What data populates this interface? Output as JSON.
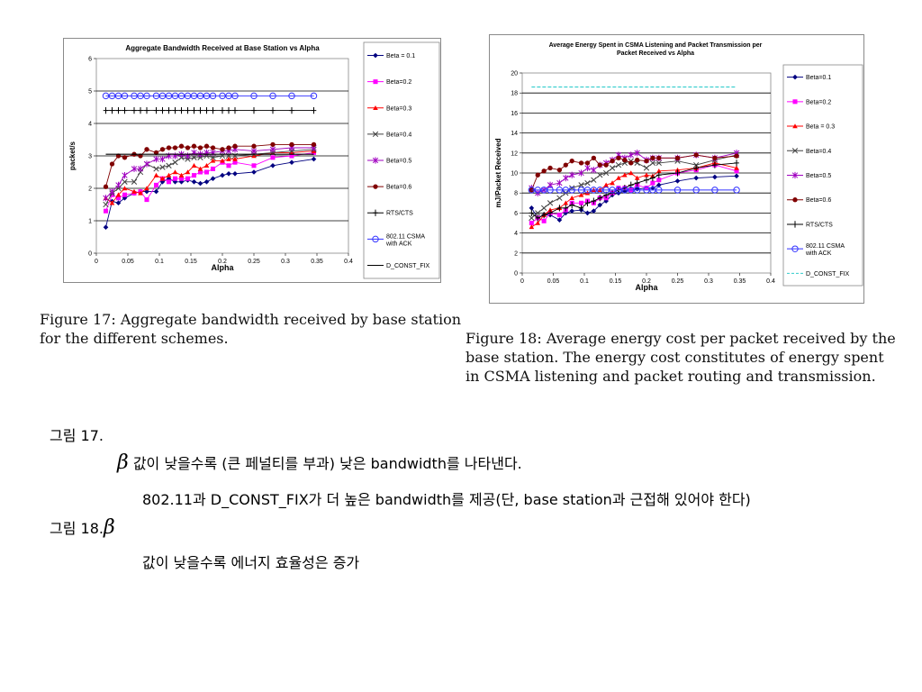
{
  "figure17": {
    "caption_label": "Figure 17:",
    "caption_text": "Aggregate bandwidth received by base station for the different schemes.",
    "chart_data": {
      "type": "line",
      "title": "Aggregate Bandwidth Received at Base Station vs Alpha",
      "xlabel": "Alpha",
      "ylabel": "packet/s",
      "xlim": [
        0,
        0.4
      ],
      "ylim": [
        0,
        6
      ],
      "xticks": [
        "0",
        "0.05",
        "0.1",
        "0.15",
        "0.2",
        "0.25",
        "0.3",
        "0.35",
        "0.4"
      ],
      "yticks": [
        "0",
        "1",
        "2",
        "3",
        "4",
        "5",
        "6"
      ],
      "grid": "horizontal",
      "legend": "right",
      "series": [
        {
          "name": "Beta = 0.1",
          "color": "#000080",
          "marker": "diamond",
          "x": [
            0.015,
            0.025,
            0.035,
            0.045,
            0.06,
            0.07,
            0.08,
            0.095,
            0.105,
            0.115,
            0.125,
            0.135,
            0.145,
            0.155,
            0.165,
            0.175,
            0.185,
            0.2,
            0.21,
            0.22,
            0.25,
            0.28,
            0.31,
            0.345
          ],
          "y": [
            0.8,
            1.6,
            1.55,
            1.7,
            1.85,
            1.9,
            1.9,
            1.9,
            2.2,
            2.3,
            2.2,
            2.2,
            2.25,
            2.2,
            2.15,
            2.2,
            2.3,
            2.4,
            2.45,
            2.45,
            2.5,
            2.7,
            2.8,
            2.9
          ]
        },
        {
          "name": "Beta=0.2",
          "color": "#ff00ff",
          "marker": "square",
          "x": [
            0.015,
            0.025,
            0.035,
            0.045,
            0.06,
            0.07,
            0.08,
            0.095,
            0.105,
            0.115,
            0.125,
            0.135,
            0.145,
            0.155,
            0.165,
            0.175,
            0.185,
            0.2,
            0.21,
            0.22,
            0.25,
            0.28,
            0.31,
            0.345
          ],
          "y": [
            1.3,
            1.8,
            1.7,
            1.8,
            1.85,
            1.9,
            1.65,
            2.1,
            2.3,
            2.2,
            2.3,
            2.3,
            2.3,
            2.4,
            2.5,
            2.5,
            2.6,
            2.8,
            2.7,
            2.8,
            2.7,
            2.95,
            3.0,
            3.1
          ]
        },
        {
          "name": "Beta=0.3",
          "color": "#ff0000",
          "marker": "triangle",
          "x": [
            0.015,
            0.025,
            0.035,
            0.045,
            0.06,
            0.07,
            0.08,
            0.095,
            0.105,
            0.115,
            0.125,
            0.135,
            0.145,
            0.155,
            0.165,
            0.175,
            0.185,
            0.2,
            0.21,
            0.22,
            0.25,
            0.28,
            0.31,
            0.345
          ],
          "y": [
            1.7,
            1.55,
            1.8,
            2.0,
            1.9,
            1.85,
            2.0,
            2.4,
            2.3,
            2.4,
            2.5,
            2.4,
            2.5,
            2.7,
            2.6,
            2.7,
            2.85,
            2.85,
            2.9,
            2.9,
            3.0,
            3.1,
            3.1,
            3.15
          ]
        },
        {
          "name": "Beta=0.4",
          "color": "#404040",
          "marker": "x",
          "x": [
            0.015,
            0.025,
            0.035,
            0.045,
            0.06,
            0.07,
            0.08,
            0.095,
            0.105,
            0.115,
            0.125,
            0.135,
            0.145,
            0.155,
            0.165,
            0.175,
            0.185,
            0.2,
            0.21,
            0.22,
            0.25,
            0.28,
            0.31,
            0.345
          ],
          "y": [
            1.5,
            1.85,
            2.0,
            2.2,
            2.2,
            2.5,
            2.75,
            2.6,
            2.65,
            2.7,
            2.8,
            2.95,
            2.9,
            2.95,
            2.95,
            3.0,
            2.95,
            3.0,
            3.0,
            3.0,
            3.05,
            3.1,
            3.15,
            3.2
          ]
        },
        {
          "name": "Beta=0.5",
          "color": "#a000c0",
          "marker": "star",
          "x": [
            0.015,
            0.025,
            0.035,
            0.045,
            0.06,
            0.07,
            0.08,
            0.095,
            0.105,
            0.115,
            0.125,
            0.135,
            0.145,
            0.155,
            0.165,
            0.175,
            0.185,
            0.2,
            0.21,
            0.22,
            0.25,
            0.28,
            0.31,
            0.345
          ],
          "y": [
            1.7,
            1.9,
            2.1,
            2.4,
            2.6,
            2.6,
            2.75,
            2.9,
            2.9,
            3.0,
            3.0,
            3.05,
            3.0,
            3.1,
            3.05,
            3.1,
            3.1,
            3.15,
            3.15,
            3.2,
            3.15,
            3.2,
            3.25,
            3.25
          ]
        },
        {
          "name": "Beta=0.6",
          "color": "#800000",
          "marker": "circle",
          "x": [
            0.015,
            0.025,
            0.035,
            0.045,
            0.06,
            0.07,
            0.08,
            0.095,
            0.105,
            0.115,
            0.125,
            0.135,
            0.145,
            0.155,
            0.165,
            0.175,
            0.185,
            0.2,
            0.21,
            0.22,
            0.25,
            0.28,
            0.31,
            0.345
          ],
          "y": [
            2.05,
            2.75,
            3.0,
            2.95,
            3.05,
            3.0,
            3.2,
            3.1,
            3.2,
            3.25,
            3.25,
            3.3,
            3.25,
            3.3,
            3.25,
            3.3,
            3.25,
            3.2,
            3.25,
            3.3,
            3.3,
            3.35,
            3.35,
            3.35
          ]
        },
        {
          "name": "RTS/CTS",
          "color": "#000000",
          "marker": "plus",
          "x": [
            0.015,
            0.025,
            0.035,
            0.045,
            0.06,
            0.07,
            0.08,
            0.095,
            0.105,
            0.115,
            0.125,
            0.135,
            0.145,
            0.155,
            0.165,
            0.175,
            0.185,
            0.2,
            0.21,
            0.22,
            0.25,
            0.28,
            0.31,
            0.345
          ],
          "y": [
            4.4,
            4.4,
            4.4,
            4.4,
            4.4,
            4.4,
            4.4,
            4.4,
            4.4,
            4.4,
            4.4,
            4.4,
            4.4,
            4.4,
            4.4,
            4.4,
            4.4,
            4.4,
            4.4,
            4.4,
            4.4,
            4.4,
            4.4,
            4.4
          ]
        },
        {
          "name": "802.11 CSMA with ACK",
          "color": "#3333ff",
          "marker": "open-circle",
          "x": [
            0.015,
            0.025,
            0.035,
            0.045,
            0.06,
            0.07,
            0.08,
            0.095,
            0.105,
            0.115,
            0.125,
            0.135,
            0.145,
            0.155,
            0.165,
            0.175,
            0.185,
            0.2,
            0.21,
            0.22,
            0.25,
            0.28,
            0.31,
            0.345
          ],
          "y": [
            4.85,
            4.85,
            4.85,
            4.85,
            4.85,
            4.85,
            4.85,
            4.85,
            4.85,
            4.85,
            4.85,
            4.85,
            4.85,
            4.85,
            4.85,
            4.85,
            4.85,
            4.85,
            4.85,
            4.85,
            4.85,
            4.85,
            4.85,
            4.85
          ]
        },
        {
          "name": "D_CONST_FIX",
          "color": "#000000",
          "marker": "none",
          "x": [
            0.015,
            0.345
          ],
          "y": [
            3.05,
            3.05
          ]
        }
      ]
    }
  },
  "figure18": {
    "caption_label": "Figure 18:",
    "caption_text": "Average energy cost per packet received by the base station. The energy cost constitutes of energy spent in CSMA listening and packet routing and transmission.",
    "chart_data": {
      "type": "line",
      "title": "Average Energy Spent in CSMA Listening and Packet Transmission per Packet Received vs Alpha",
      "title_line1": "Average Energy Spent in CSMA Listening and Packet Transmission per",
      "title_line2": "Packet Received vs Alpha",
      "xlabel": "Alpha",
      "ylabel": "mJ/Packet Received",
      "xlim": [
        0,
        0.4
      ],
      "ylim": [
        0,
        20
      ],
      "xticks": [
        "0",
        "0.05",
        "0.1",
        "0.15",
        "0.2",
        "0.25",
        "0.3",
        "0.35",
        "0.4"
      ],
      "yticks": [
        "0",
        "2",
        "4",
        "6",
        "8",
        "10",
        "12",
        "14",
        "16",
        "18",
        "20"
      ],
      "grid": "horizontal",
      "legend": "right",
      "series": [
        {
          "name": "Beta=0.1",
          "color": "#000080",
          "marker": "diamond",
          "x": [
            0.015,
            0.025,
            0.035,
            0.045,
            0.06,
            0.07,
            0.08,
            0.095,
            0.105,
            0.115,
            0.125,
            0.135,
            0.145,
            0.155,
            0.165,
            0.175,
            0.185,
            0.2,
            0.21,
            0.22,
            0.25,
            0.28,
            0.31,
            0.345
          ],
          "y": [
            6.5,
            5.5,
            5.8,
            5.8,
            5.3,
            6.0,
            6.2,
            6.3,
            6.0,
            6.2,
            6.8,
            7.2,
            7.8,
            8.0,
            8.2,
            8.3,
            8.4,
            8.5,
            8.5,
            8.8,
            9.2,
            9.5,
            9.6,
            9.7
          ]
        },
        {
          "name": "Beta=0.2",
          "color": "#ff00ff",
          "marker": "square",
          "x": [
            0.015,
            0.025,
            0.035,
            0.045,
            0.06,
            0.07,
            0.08,
            0.095,
            0.105,
            0.115,
            0.125,
            0.135,
            0.145,
            0.155,
            0.165,
            0.175,
            0.185,
            0.2,
            0.21,
            0.22,
            0.25,
            0.28,
            0.31,
            0.345
          ],
          "y": [
            5.0,
            5.5,
            5.2,
            6.0,
            5.8,
            6.3,
            7.0,
            7.0,
            7.2,
            7.0,
            7.5,
            7.5,
            8.0,
            8.5,
            8.5,
            8.3,
            8.8,
            8.5,
            9.0,
            9.3,
            10.0,
            10.3,
            10.8,
            10.2
          ]
        },
        {
          "name": "Beta = 0.3",
          "color": "#ff0000",
          "marker": "triangle",
          "x": [
            0.015,
            0.025,
            0.035,
            0.045,
            0.06,
            0.07,
            0.08,
            0.095,
            0.105,
            0.115,
            0.125,
            0.135,
            0.145,
            0.155,
            0.165,
            0.175,
            0.185,
            0.2,
            0.21,
            0.22,
            0.25,
            0.28,
            0.31,
            0.345
          ],
          "y": [
            4.6,
            5.0,
            5.8,
            6.3,
            6.5,
            7.0,
            7.5,
            7.8,
            8.0,
            8.3,
            8.3,
            8.8,
            9.0,
            9.5,
            9.8,
            10.0,
            9.5,
            9.8,
            9.7,
            10.2,
            10.3,
            10.5,
            11.0,
            10.5
          ]
        },
        {
          "name": "Beta=0.4",
          "color": "#404040",
          "marker": "x",
          "x": [
            0.015,
            0.025,
            0.035,
            0.045,
            0.06,
            0.07,
            0.08,
            0.095,
            0.105,
            0.115,
            0.125,
            0.135,
            0.145,
            0.155,
            0.165,
            0.175,
            0.185,
            0.2,
            0.21,
            0.22,
            0.25,
            0.28,
            0.31,
            0.345
          ],
          "y": [
            5.5,
            6.0,
            6.5,
            7.0,
            7.5,
            8.0,
            8.5,
            8.8,
            9.0,
            9.3,
            9.8,
            10.0,
            10.5,
            10.8,
            11.0,
            11.2,
            11.0,
            10.5,
            11.0,
            11.0,
            11.2,
            10.8,
            11.3,
            11.8
          ]
        },
        {
          "name": "Beta=0.5",
          "color": "#a000c0",
          "marker": "star",
          "x": [
            0.015,
            0.025,
            0.035,
            0.045,
            0.06,
            0.07,
            0.08,
            0.095,
            0.105,
            0.115,
            0.125,
            0.135,
            0.145,
            0.155,
            0.165,
            0.175,
            0.185,
            0.2,
            0.21,
            0.22,
            0.25,
            0.28,
            0.31,
            0.345
          ],
          "y": [
            8.5,
            8.0,
            8.3,
            8.8,
            9.0,
            9.5,
            9.8,
            10.0,
            10.5,
            10.3,
            10.8,
            11.0,
            11.3,
            11.8,
            11.5,
            11.8,
            12.0,
            11.3,
            11.5,
            11.5,
            11.5,
            11.8,
            11.5,
            12.0
          ]
        },
        {
          "name": "Beta=0.6",
          "color": "#800000",
          "marker": "circle",
          "x": [
            0.015,
            0.025,
            0.035,
            0.045,
            0.06,
            0.07,
            0.08,
            0.095,
            0.105,
            0.115,
            0.125,
            0.135,
            0.145,
            0.155,
            0.165,
            0.175,
            0.185,
            0.2,
            0.21,
            0.22,
            0.25,
            0.28,
            0.31,
            0.345
          ],
          "y": [
            8.3,
            9.8,
            10.2,
            10.5,
            10.3,
            10.8,
            11.2,
            11.0,
            11.0,
            11.5,
            10.8,
            10.8,
            11.2,
            11.5,
            11.3,
            11.0,
            11.3,
            11.2,
            11.5,
            11.5,
            11.5,
            11.8,
            11.5,
            11.7
          ]
        },
        {
          "name": "RTS/CTS",
          "color": "#000000",
          "marker": "plus",
          "x": [
            0.015,
            0.025,
            0.035,
            0.045,
            0.06,
            0.07,
            0.08,
            0.095,
            0.105,
            0.115,
            0.125,
            0.135,
            0.145,
            0.155,
            0.165,
            0.175,
            0.185,
            0.2,
            0.21,
            0.22,
            0.25,
            0.28,
            0.31,
            0.345
          ],
          "y": [
            6.0,
            5.5,
            5.8,
            6.0,
            6.5,
            6.5,
            6.8,
            6.5,
            7.0,
            7.2,
            7.5,
            7.8,
            8.0,
            8.3,
            8.5,
            8.8,
            9.0,
            9.3,
            9.5,
            9.8,
            10.0,
            10.5,
            10.8,
            11.0
          ]
        },
        {
          "name": "802.11 CSMA with ACK",
          "color": "#3333ff",
          "marker": "open-circle",
          "x": [
            0.015,
            0.025,
            0.035,
            0.045,
            0.06,
            0.07,
            0.08,
            0.095,
            0.105,
            0.115,
            0.125,
            0.135,
            0.145,
            0.155,
            0.165,
            0.175,
            0.185,
            0.2,
            0.21,
            0.22,
            0.25,
            0.28,
            0.31,
            0.345
          ],
          "y": [
            8.3,
            8.3,
            8.3,
            8.3,
            8.3,
            8.3,
            8.3,
            8.3,
            8.3,
            8.3,
            8.3,
            8.3,
            8.3,
            8.3,
            8.3,
            8.3,
            8.3,
            8.3,
            8.3,
            8.3,
            8.3,
            8.3,
            8.3,
            8.3
          ]
        },
        {
          "name": "D_CONST_FIX",
          "color": "#33cccc",
          "marker": "none",
          "dash": true,
          "x": [
            0.015,
            0.345
          ],
          "y": [
            18.6,
            18.6
          ]
        }
      ]
    }
  },
  "notes": {
    "line1": "그림 17.",
    "line2_beta": "β",
    "line2": "값이 낮을수록 (큰 페널티를 부과) 낮은 bandwidth를 나타낸다.",
    "line3": "802.11과 D_CONST_FIX가 더 높은 bandwidth를 제공(단, base station과 근접해 있어야 한다)",
    "line4": "그림 18.",
    "line4_beta": "β",
    "line5": "값이 낮을수록 에너지 효율성은 증가"
  }
}
